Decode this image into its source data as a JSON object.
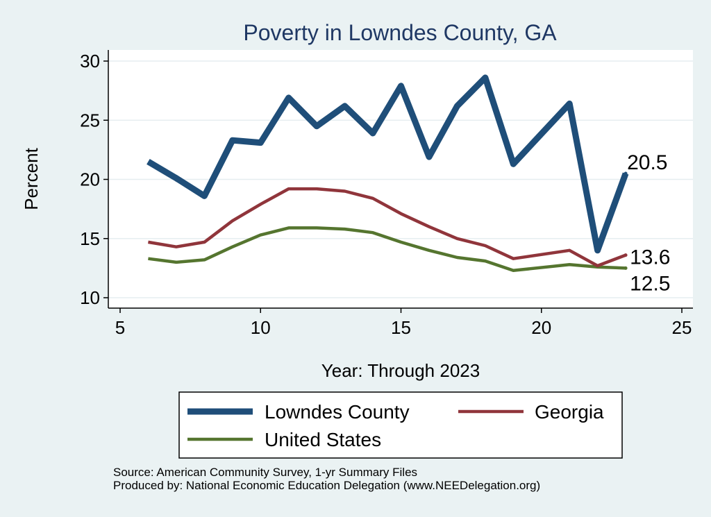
{
  "chart_data": {
    "type": "line",
    "title": "Poverty in Lowndes County, GA",
    "xlabel": "Year: Through 2023",
    "ylabel": "Percent",
    "xlim": [
      5,
      25
    ],
    "ylim": [
      10,
      30
    ],
    "x_ticks": [
      5,
      10,
      15,
      20,
      25
    ],
    "y_ticks": [
      10,
      15,
      20,
      25,
      30
    ],
    "grid": true,
    "series": [
      {
        "name": "Lowndes County",
        "color": "#1f4e79",
        "x": [
          6,
          7,
          8,
          9,
          10,
          11,
          12,
          13,
          14,
          15,
          16,
          17,
          18,
          19,
          21,
          22,
          23
        ],
        "values": [
          21.5,
          20.1,
          18.6,
          23.3,
          23.1,
          26.9,
          24.5,
          26.2,
          23.9,
          27.9,
          21.9,
          26.2,
          28.6,
          21.3,
          26.4,
          14.0,
          20.5
        ],
        "end_label": "20.5"
      },
      {
        "name": "Georgia",
        "color": "#90353b",
        "x": [
          6,
          7,
          8,
          9,
          10,
          11,
          12,
          13,
          14,
          15,
          16,
          17,
          18,
          19,
          21,
          22,
          23
        ],
        "values": [
          14.7,
          14.3,
          14.7,
          16.5,
          17.9,
          19.2,
          19.2,
          19.0,
          18.4,
          17.1,
          16.0,
          15.0,
          14.4,
          13.3,
          14.0,
          12.7,
          13.6
        ],
        "end_label": "13.6"
      },
      {
        "name": "United States",
        "color": "#55752f",
        "x": [
          6,
          7,
          8,
          9,
          10,
          11,
          12,
          13,
          14,
          15,
          16,
          17,
          18,
          19,
          21,
          22,
          23
        ],
        "values": [
          13.3,
          13.0,
          13.2,
          14.3,
          15.3,
          15.9,
          15.9,
          15.8,
          15.5,
          14.7,
          14.0,
          13.4,
          13.1,
          12.3,
          12.8,
          12.6,
          12.5
        ],
        "end_label": "12.5"
      }
    ],
    "legend": {
      "placement": "bottom",
      "entries": [
        "Lowndes County",
        "Georgia",
        "United States"
      ]
    }
  },
  "footer": {
    "source": "Source: American Community Survey, 1-yr Summary Files",
    "produced_by": "Produced by: National Economic Education Delegation (www.NEEDelegation.org)"
  }
}
